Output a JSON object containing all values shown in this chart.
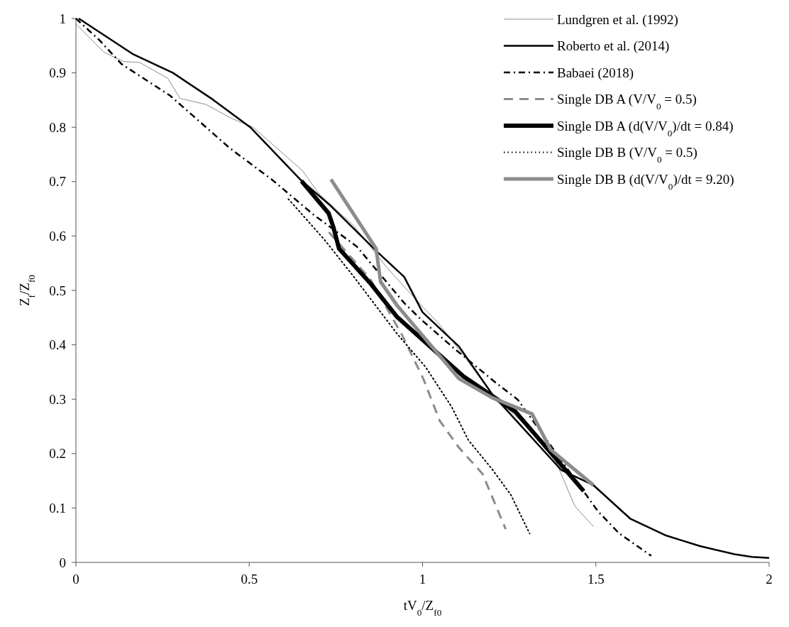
{
  "chart_data": {
    "type": "line",
    "xlabel": "tV$_{0}$/Z$_{f0}$",
    "ylabel": "Z$_{f}$/Z$_{f0}$",
    "xlim": [
      0,
      2
    ],
    "ylim": [
      0,
      1
    ],
    "xticks": [
      0,
      0.5,
      1,
      1.5,
      2
    ],
    "yticks": [
      0,
      0.1,
      0.2,
      0.3,
      0.4,
      0.5,
      0.6,
      0.7,
      0.8,
      0.9,
      1
    ],
    "grid": false,
    "legend": "top right",
    "marker": "none",
    "series": [
      {
        "name": "Lundgren et al. (1992)",
        "color": "#8c8c8c",
        "line_style": "solid",
        "x": [
          0,
          0.081,
          0.136,
          0.184,
          0.265,
          0.3,
          0.375,
          0.45,
          0.511,
          0.654,
          0.702,
          0.8,
          0.9,
          1.0,
          1.043,
          1.118,
          1.2,
          1.3,
          1.37,
          1.44,
          1.493
        ],
        "values": [
          0.99,
          0.938,
          0.921,
          0.919,
          0.89,
          0.853,
          0.842,
          0.816,
          0.8,
          0.72,
          0.677,
          0.62,
          0.54,
          0.47,
          0.442,
          0.381,
          0.31,
          0.25,
          0.207,
          0.103,
          0.066
        ]
      },
      {
        "name": "Roberto et al. (2014)",
        "color": "#000000",
        "line_style": "solid",
        "x": [
          0.008,
          0.163,
          0.28,
          0.395,
          0.503,
          0.647,
          0.736,
          0.866,
          0.947,
          1.0,
          1.105,
          1.2,
          1.3,
          1.4,
          1.493,
          1.6,
          1.7,
          1.75,
          1.8,
          1.9,
          1.95,
          2.0
        ],
        "values": [
          1.0,
          0.935,
          0.9,
          0.851,
          0.8,
          0.704,
          0.655,
          0.573,
          0.525,
          0.46,
          0.397,
          0.31,
          0.24,
          0.17,
          0.142,
          0.08,
          0.05,
          0.04,
          0.03,
          0.015,
          0.01,
          0.008
        ]
      },
      {
        "name": "Babaei (2018)",
        "color": "#000000",
        "line_style": "dashdot",
        "x": [
          0,
          0.068,
          0.132,
          0.272,
          0.443,
          0.565,
          0.688,
          0.81,
          0.947,
          0.995,
          1.09,
          1.214,
          1.275,
          1.506,
          1.568,
          1.66
        ],
        "values": [
          1.0,
          0.96,
          0.916,
          0.858,
          0.762,
          0.704,
          0.638,
          0.581,
          0.477,
          0.447,
          0.394,
          0.329,
          0.299,
          0.094,
          0.053,
          0.012
        ]
      },
      {
        "name": "Single DB A  (V/V$_{0}$ = 0.5)",
        "color": "#8c8c8c",
        "line_style": "dashed",
        "x": [
          0.73,
          0.85,
          0.941,
          1.002,
          1.05,
          1.105,
          1.173,
          1.24
        ],
        "values": [
          0.607,
          0.52,
          0.418,
          0.338,
          0.26,
          0.211,
          0.163,
          0.061
        ]
      },
      {
        "name": "Single DB A  (d(V/V$_{0}$)/dt = 0.84)",
        "color": "#000000",
        "line_style": "solid",
        "x": [
          0.651,
          0.729,
          0.743,
          0.759,
          0.851,
          0.927,
          1.118,
          1.268,
          1.363,
          1.465
        ],
        "values": [
          0.701,
          0.642,
          0.616,
          0.577,
          0.512,
          0.451,
          0.342,
          0.277,
          0.207,
          0.131
        ]
      },
      {
        "name": "Single DB  B  (V/V$_{0}$ = 0.5)",
        "color": "#000000",
        "line_style": "dotted",
        "x": [
          0.613,
          0.716,
          0.797,
          0.927,
          1.009,
          1.084,
          1.132,
          1.2,
          1.255,
          1.309
        ],
        "values": [
          0.668,
          0.594,
          0.529,
          0.42,
          0.359,
          0.286,
          0.225,
          0.172,
          0.124,
          0.053
        ]
      },
      {
        "name": "Single DB B  (d(V/V$_{0}$)/dt = 9.20)",
        "color": "#8c8c8c",
        "line_style": "solid",
        "x": [
          0.736,
          0.866,
          0.879,
          0.927,
          1.105,
          1.2,
          1.316,
          1.37,
          1.493
        ],
        "values": [
          0.704,
          0.577,
          0.516,
          0.472,
          0.338,
          0.303,
          0.273,
          0.207,
          0.142
        ]
      }
    ]
  }
}
